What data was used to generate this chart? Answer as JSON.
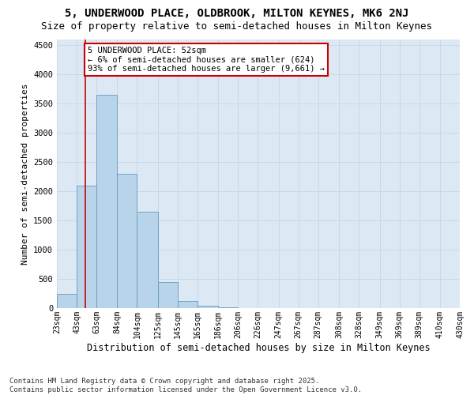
{
  "title1": "5, UNDERWOOD PLACE, OLDBROOK, MILTON KEYNES, MK6 2NJ",
  "title2": "Size of property relative to semi-detached houses in Milton Keynes",
  "xlabel": "Distribution of semi-detached houses by size in Milton Keynes",
  "ylabel": "Number of semi-detached properties",
  "bin_edges": [
    23,
    43,
    63,
    84,
    104,
    125,
    145,
    165,
    186,
    206,
    226,
    247,
    267,
    287,
    308,
    328,
    349,
    369,
    389,
    410,
    430
  ],
  "bar_heights": [
    250,
    2100,
    3650,
    2300,
    1650,
    450,
    120,
    40,
    10,
    4,
    2,
    1,
    0,
    0,
    0,
    0,
    0,
    0,
    0,
    0
  ],
  "bar_color": "#b8d4ea",
  "bar_edge_color": "#6699bb",
  "grid_color": "#c8d8e8",
  "background_color": "#dce9f5",
  "property_x": 52,
  "property_line_color": "#cc0000",
  "annotation_text": "5 UNDERWOOD PLACE: 52sqm\n← 6% of semi-detached houses are smaller (624)\n93% of semi-detached houses are larger (9,661) →",
  "annotation_box_color": "#ffffff",
  "annotation_box_edge_color": "#cc0000",
  "ylim": [
    0,
    4600
  ],
  "xlim": [
    23,
    430
  ],
  "tick_labels": [
    "23sqm",
    "43sqm",
    "63sqm",
    "84sqm",
    "104sqm",
    "125sqm",
    "145sqm",
    "165sqm",
    "186sqm",
    "206sqm",
    "226sqm",
    "247sqm",
    "267sqm",
    "287sqm",
    "308sqm",
    "328sqm",
    "349sqm",
    "369sqm",
    "389sqm",
    "410sqm",
    "430sqm"
  ],
  "tick_positions": [
    23,
    43,
    63,
    84,
    104,
    125,
    145,
    165,
    186,
    206,
    226,
    247,
    267,
    287,
    308,
    328,
    349,
    369,
    389,
    410,
    430
  ],
  "yticks": [
    0,
    500,
    1000,
    1500,
    2000,
    2500,
    3000,
    3500,
    4000,
    4500
  ],
  "footer_text": "Contains HM Land Registry data © Crown copyright and database right 2025.\nContains public sector information licensed under the Open Government Licence v3.0.",
  "title1_fontsize": 10,
  "title2_fontsize": 9,
  "xlabel_fontsize": 8.5,
  "ylabel_fontsize": 8,
  "tick_fontsize": 7,
  "annotation_fontsize": 7.5,
  "footer_fontsize": 6.5
}
